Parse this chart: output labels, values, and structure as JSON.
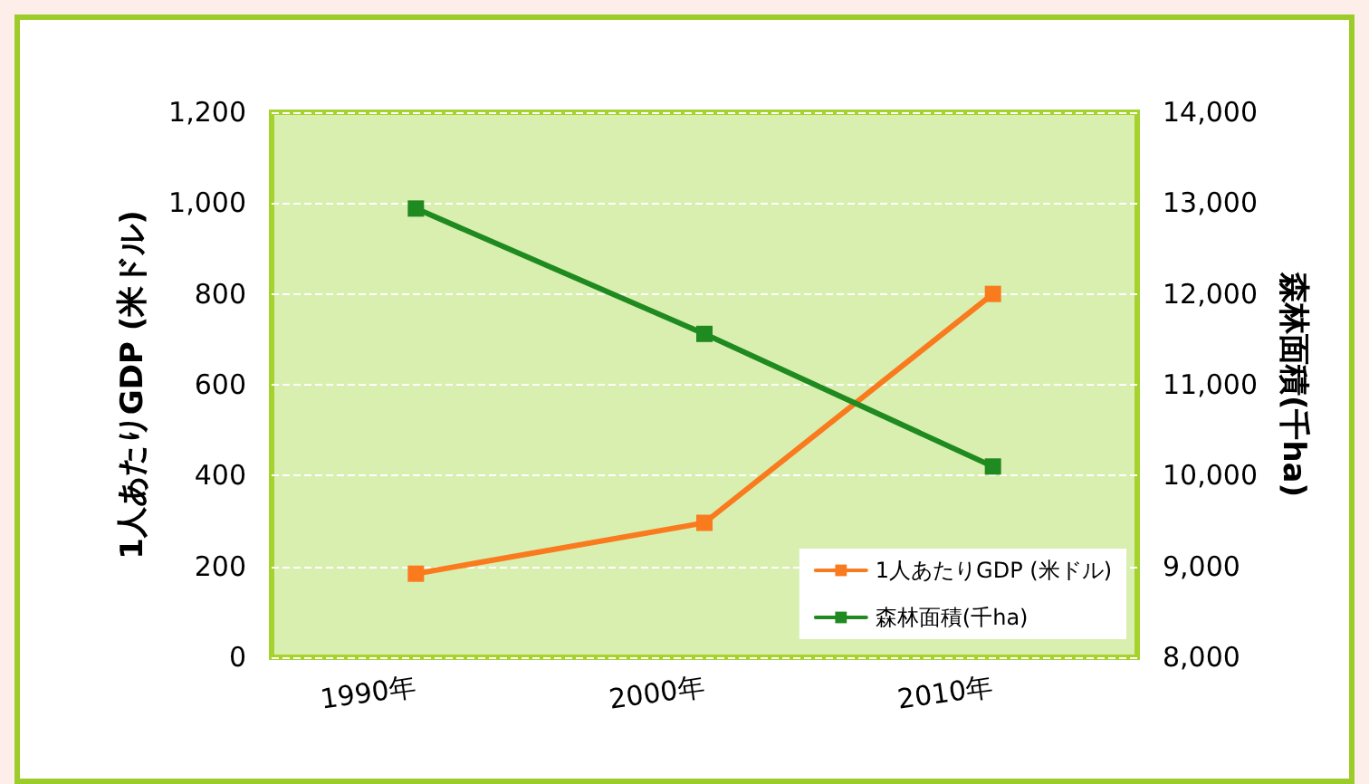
{
  "chart_data": {
    "type": "line",
    "categories": [
      "1990年",
      "2000年",
      "2010年"
    ],
    "series": [
      {
        "name": "1人あたりGDP (米ドル)",
        "color": "#fa7a1e",
        "values": [
          184,
          296,
          800
        ]
      },
      {
        "name": "森林面積(千ha)",
        "color": "#1f8a1f",
        "values": [
          12940,
          11560,
          10100
        ],
        "axis": "y2"
      }
    ],
    "ylabel": "1人あたりGDP (米ドル)",
    "y2label": "森林面積(千ha)",
    "ylim": [
      0,
      1200
    ],
    "yticks": [
      0,
      200,
      400,
      600,
      800,
      {
        "value": 1000,
        "label": "1,000"
      },
      {
        "value": 1200,
        "label": "1,200"
      }
    ],
    "y2lim": [
      8000,
      14000
    ],
    "y2ticks": [
      {
        "value": 8000,
        "label": "8,000"
      },
      {
        "value": 9000,
        "label": "9,000"
      },
      {
        "value": 10000,
        "label": "10,000"
      },
      {
        "value": 11000,
        "label": "11,000"
      },
      {
        "value": 12000,
        "label": "12,000"
      },
      {
        "value": 13000,
        "label": "13,000"
      },
      {
        "value": 14000,
        "label": "14,000"
      }
    ],
    "grid": "y",
    "legend": "bottom right",
    "marker": "square",
    "line_style": "solid"
  }
}
